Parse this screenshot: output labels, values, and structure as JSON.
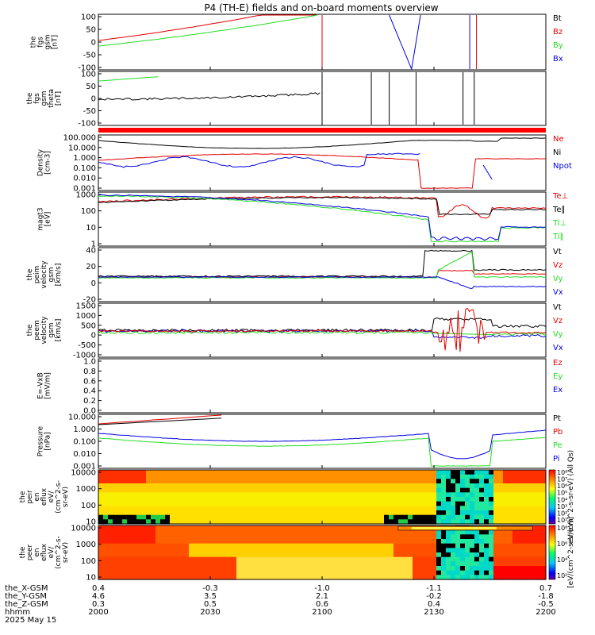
{
  "title": "P4 (TH-E) fields and on-board moments overview",
  "colors": {
    "black": "#000000",
    "red": "#e00000",
    "green": "#22dd22",
    "blue": "#0000e0",
    "bar": "#ff0000"
  },
  "chart_data": {
    "type": "line",
    "x_axis": {
      "rows": [
        {
          "label": "the_X-GSM",
          "values": [
            "0.4",
            "-0.3",
            "-1.0",
            "-1.1",
            "0.7"
          ]
        },
        {
          "label": "the_Y-GSM",
          "values": [
            "4.6",
            "3.5",
            "2.1",
            "-0.2",
            "-1.8"
          ]
        },
        {
          "label": "the_Z-GSM",
          "values": [
            "0.3",
            "0.5",
            "0.6",
            "0.4",
            "-0.5"
          ]
        },
        {
          "label": "hhmm",
          "values": [
            "2000",
            "2030",
            "2100",
            "2130",
            "2200"
          ]
        }
      ],
      "date": "2025 May 15",
      "time_range": [
        "2000",
        "2200"
      ]
    },
    "panels": [
      {
        "id": "fgs",
        "ylabel": [
          "the",
          "fgs",
          "gsm",
          "[nT]"
        ],
        "ticks": [
          "100",
          "50",
          "0",
          "-50",
          "-100"
        ],
        "ylim": [
          -100,
          100
        ],
        "legend": [
          {
            "text": "Bt",
            "color": "#000000"
          },
          {
            "text": "Bz",
            "color": "#e00000"
          },
          {
            "text": "By",
            "color": "#22dd22"
          },
          {
            "text": "Bx",
            "color": "#0000e0"
          }
        ]
      },
      {
        "id": "fgs-theta",
        "ylabel": [
          "the",
          "fgs",
          "gsm",
          "theta",
          "[nT]"
        ],
        "ticks": [
          "100",
          "50",
          "0",
          "-50",
          "-100"
        ],
        "ylim": [
          -100,
          100
        ],
        "legend": []
      },
      {
        "id": "density",
        "ylabel": [
          "Density",
          "[cm-3]"
        ],
        "ticks": [
          "100.000",
          "10.000",
          "1.000",
          "0.100",
          "0.010",
          "0.001"
        ],
        "ylim": [
          0.001,
          100
        ],
        "scale": "log",
        "legend": [
          {
            "text": "Ne",
            "color": "#e00000"
          },
          {
            "text": "Ni",
            "color": "#000000"
          },
          {
            "text": "Npot",
            "color": "#0000e0"
          }
        ]
      },
      {
        "id": "temperature",
        "ylabel": [
          "magt3",
          "[eV]"
        ],
        "ticks": [
          "1000",
          "100",
          "10",
          "1"
        ],
        "ylim": [
          1,
          1000
        ],
        "scale": "log",
        "legend": [
          {
            "text": "Te⊥",
            "color": "#e00000"
          },
          {
            "text": "Te∥",
            "color": "#000000"
          },
          {
            "text": "Ti⊥",
            "color": "#22dd22"
          },
          {
            "text": "Ti∥",
            "color": "#22dd22"
          }
        ]
      },
      {
        "id": "peim-velocity",
        "ylabel": [
          "the",
          "peim",
          "velocity",
          "gsm",
          "[km/s]"
        ],
        "ticks": [
          "40",
          "20",
          "0",
          "-20"
        ],
        "ylim": [
          -30,
          40
        ],
        "legend": [
          {
            "text": "Vt",
            "color": "#000000"
          },
          {
            "text": "Vz",
            "color": "#e00000"
          },
          {
            "text": "Vy",
            "color": "#22dd22"
          },
          {
            "text": "Vx",
            "color": "#0000e0"
          }
        ]
      },
      {
        "id": "peem-velocity",
        "ylabel": [
          "the",
          "peem",
          "velocity",
          "gsm",
          "[km/s]"
        ],
        "ticks": [
          "1500",
          "1000",
          "500",
          "0",
          "-500",
          "-1000"
        ],
        "ylim": [
          -1300,
          1500
        ],
        "legend": [
          {
            "text": "Vt",
            "color": "#000000"
          },
          {
            "text": "Vz",
            "color": "#e00000"
          },
          {
            "text": "Vy",
            "color": "#22dd22"
          },
          {
            "text": "Vx",
            "color": "#0000e0"
          }
        ]
      },
      {
        "id": "efield",
        "ylabel": [
          "E=-VxB",
          "[mV/m]"
        ],
        "ticks": [
          "1.0",
          "0.8",
          "0.6",
          "0.4",
          "0.2",
          "0.0"
        ],
        "ylim": [
          0,
          1
        ],
        "legend": [
          {
            "text": "Ez",
            "color": "#e00000"
          },
          {
            "text": "Ey",
            "color": "#22dd22"
          },
          {
            "text": "Ex",
            "color": "#0000e0"
          }
        ]
      },
      {
        "id": "pressure",
        "ylabel": [
          "Pressure",
          "[nPa]"
        ],
        "ticks": [
          "10.000",
          "1.000",
          "0.100",
          "0.010",
          "0.001"
        ],
        "ylim": [
          0.0003,
          30
        ],
        "scale": "log",
        "legend": [
          {
            "text": "Pt",
            "color": "#000000"
          },
          {
            "text": "Pb",
            "color": "#e00000"
          },
          {
            "text": "Pe",
            "color": "#22dd22"
          },
          {
            "text": "Pi",
            "color": "#0000e0"
          }
        ]
      },
      {
        "id": "peir-spectrogram",
        "ylabel": [
          "the",
          "peir",
          "en",
          "eflux",
          "eV/",
          "(cm^2-s-",
          "sr-eV)"
        ],
        "ticks": [
          "10000",
          "1000",
          "100",
          "10"
        ],
        "ylim": [
          5,
          25000
        ],
        "scale": "log",
        "type": "heatmap",
        "colorbar_ticks": [
          "10⁸",
          "10⁷",
          "10⁶",
          "10⁵",
          "10⁴",
          "10³",
          "10²",
          "10¹"
        ],
        "colorbar_label": "eV/(cm^2-s-sr-eV) (All Qs)",
        "legend": []
      },
      {
        "id": "peer-spectrogram",
        "ylabel": [
          "the",
          "peer",
          "en",
          "eflux",
          "eV/",
          "(cm^2-s-",
          "sr-eV)"
        ],
        "ticks": [
          "10000",
          "1000",
          "100",
          "10"
        ],
        "ylim": [
          5,
          25000
        ],
        "scale": "log",
        "type": "heatmap",
        "colorbar_ticks": [
          "10⁸",
          "10⁶",
          "10⁴",
          "10²"
        ],
        "colorbar_label": "[eV/(cm^2-s-sr-eV)]",
        "legend": []
      }
    ]
  }
}
